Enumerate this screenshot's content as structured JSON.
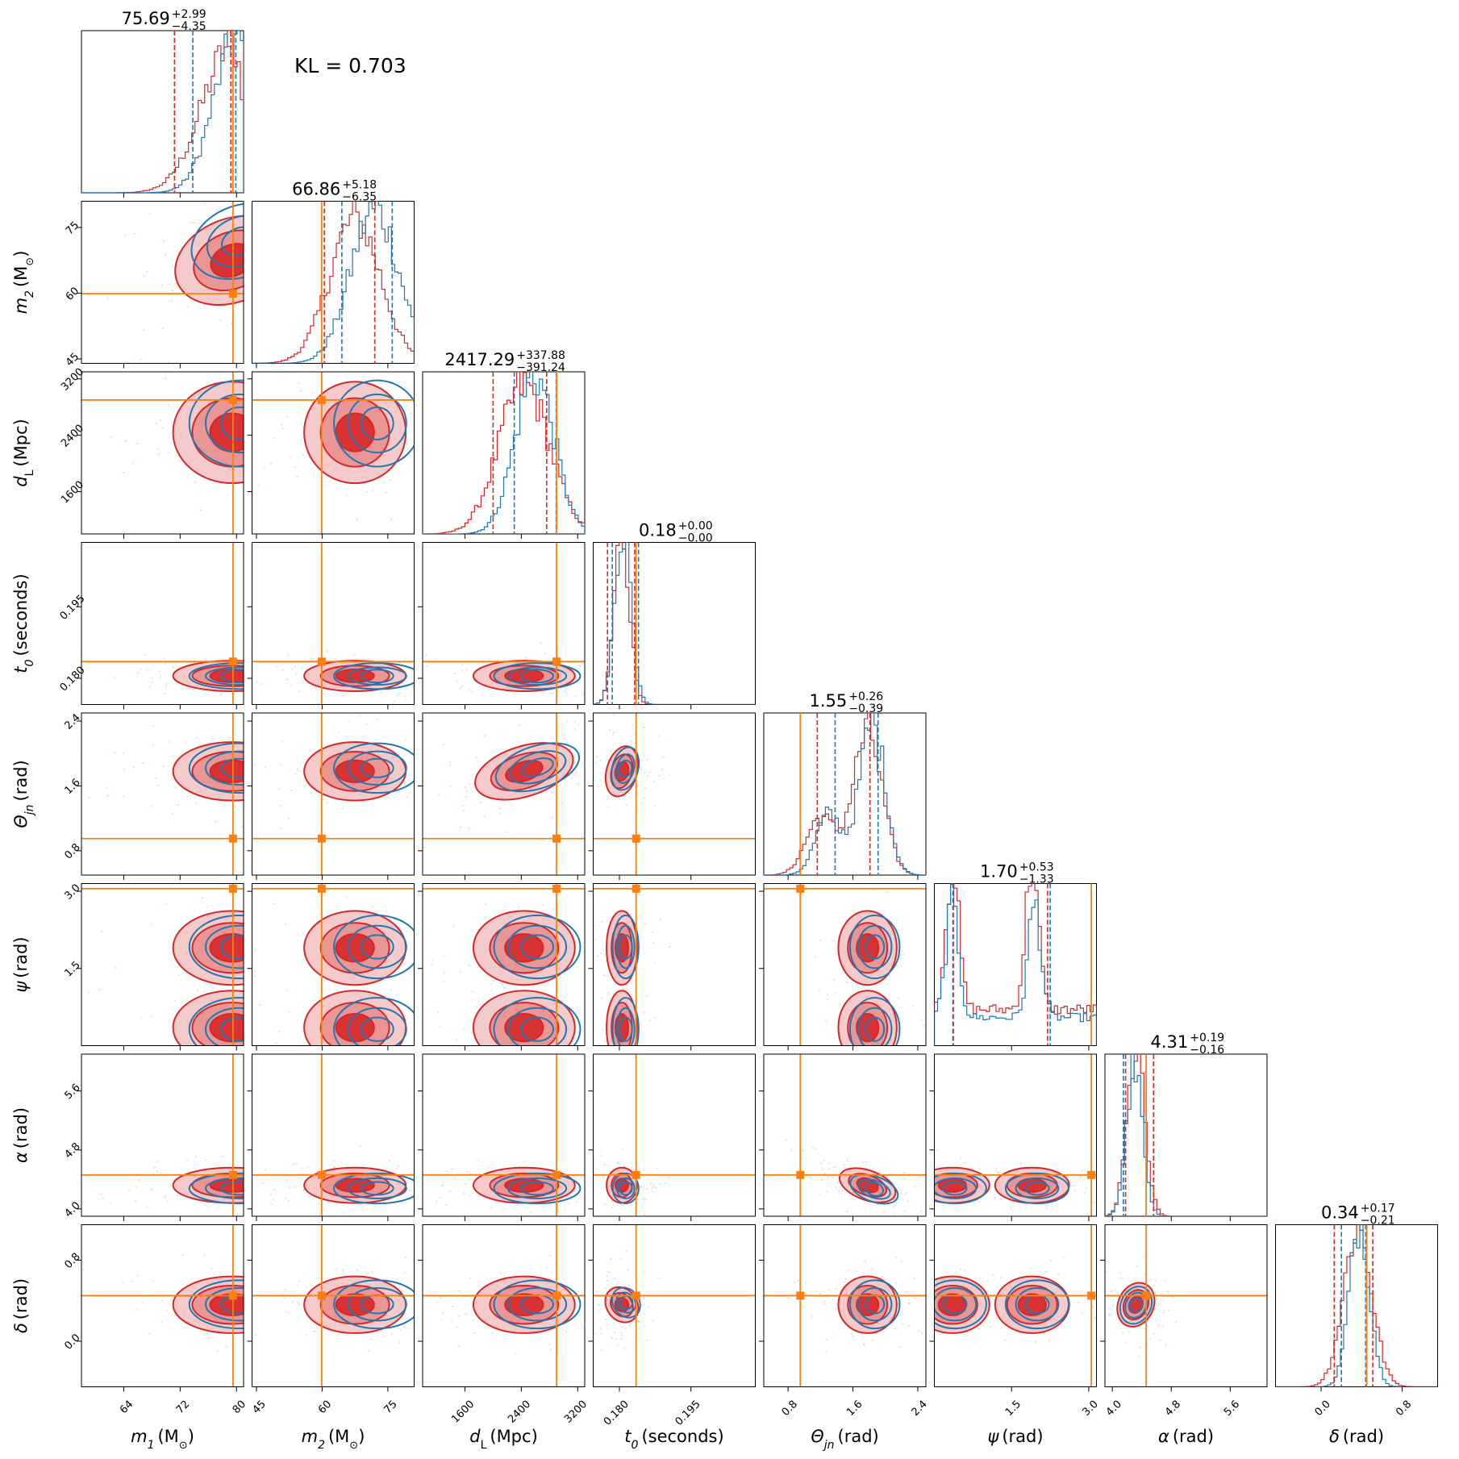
{
  "chart_data": {
    "type": "scatter",
    "subtype": "corner-plot",
    "annotation": "KL = 0.703",
    "colors": {
      "posterior_a": "#d62728",
      "posterior_b": "#1f77b4",
      "truth": "#ff7f0e"
    },
    "series": [
      {
        "color": "#d62728",
        "style": "filled-contours-and-histograms"
      },
      {
        "color": "#1f77b4",
        "style": "line-contours-and-histograms"
      }
    ],
    "parameters": [
      {
        "key": "m1",
        "sym": "m",
        "sub": "1",
        "unit": "(M",
        "unit_sub": "⊙",
        "unit_end": ")",
        "range": [
          58,
          81
        ],
        "ticks": [
          64,
          72,
          80
        ],
        "tick_labels": [
          "64",
          "72",
          "80"
        ],
        "truth": 79.5,
        "title_main": "75.69",
        "title_plus": "+2.99",
        "title_minus": "−4.35",
        "quantiles_red": [
          71.2,
          79.2
        ],
        "quantiles_blue": [
          73.8,
          79.9
        ],
        "hist_red": {
          "peak": 79.4,
          "width": 4.2,
          "skew": "left"
        },
        "hist_blue": {
          "peak": 80.1,
          "width": 3.3,
          "skew": "left"
        }
      },
      {
        "key": "m2",
        "sym": "m",
        "sub": "2",
        "unit": "(M",
        "unit_sub": "⊙",
        "unit_end": ")",
        "range": [
          44,
          81
        ],
        "ticks": [
          45,
          60,
          75
        ],
        "tick_labels": [
          "45",
          "60",
          "75"
        ],
        "truth": 59.9,
        "title_main": "66.86",
        "title_plus": "+5.18",
        "title_minus": "−6.35",
        "quantiles_red": [
          60.5,
          72.0
        ],
        "quantiles_blue": [
          64.5,
          76.0
        ],
        "hist_red": {
          "peak": 67.5,
          "width": 5.8
        },
        "hist_blue": {
          "peak": 72.0,
          "width": 5.5
        }
      },
      {
        "key": "dl",
        "sym": "d",
        "sub": "L",
        "unit": "(Mpc)",
        "range": [
          1000,
          3300
        ],
        "ticks": [
          1600,
          2400,
          3200
        ],
        "tick_labels": [
          "1600",
          "2400",
          "3200"
        ],
        "truth": 2900,
        "title_main": "2417.29",
        "title_plus": "+337.88",
        "title_minus": "−391.24",
        "quantiles_red": [
          2000,
          2760
        ],
        "quantiles_blue": [
          2300,
          2895
        ],
        "hist_red": {
          "peak": 2440,
          "width": 360
        },
        "hist_blue": {
          "peak": 2590,
          "width": 280
        }
      },
      {
        "key": "t0",
        "sym": "t",
        "sub": "0",
        "unit": "(seconds)",
        "range": [
          0.1745,
          0.2085
        ],
        "ticks": [
          0.18,
          0.195
        ],
        "tick_labels": [
          "0.180",
          "0.195"
        ],
        "truth": 0.1835,
        "title_main": "0.18",
        "title_plus": "+0.00",
        "title_minus": "−0.00",
        "quantiles_red": [
          0.1775,
          0.1832
        ],
        "quantiles_blue": [
          0.1785,
          0.184
        ],
        "hist_red": {
          "peak": 0.1805,
          "width": 0.0016
        },
        "hist_blue": {
          "peak": 0.1808,
          "width": 0.0017
        }
      },
      {
        "key": "thetajn",
        "sym": "Θ",
        "sub": "jn",
        "unit": "(rad)",
        "range": [
          0.5,
          2.5
        ],
        "ticks": [
          0.8,
          1.6,
          2.4
        ],
        "tick_labels": [
          "0.8",
          "1.6",
          "2.4"
        ],
        "truth": 0.95,
        "title_main": "1.55",
        "title_plus": "+0.26",
        "title_minus": "−0.39",
        "quantiles_red": [
          1.16,
          1.81
        ],
        "quantiles_blue": [
          1.38,
          1.91
        ],
        "hist_red": {
          "peak": 1.78,
          "width": 0.18,
          "bimodal": 1.2
        },
        "hist_blue": {
          "peak": 1.84,
          "width": 0.16,
          "bimodal": 1.3
        }
      },
      {
        "key": "psi",
        "sym": "ψ",
        "sub": "",
        "unit": "(rad)",
        "range": [
          0.0,
          3.15
        ],
        "ticks": [
          1.5,
          3.0
        ],
        "tick_labels": [
          "1.5",
          "3.0"
        ],
        "truth": 3.05,
        "title_main": "1.70",
        "title_plus": "+0.53",
        "title_minus": "−1.33",
        "quantiles_red": [
          0.37,
          2.2
        ],
        "quantiles_blue": [
          0.36,
          2.25
        ],
        "hist_red": {
          "peaks": [
            0.35,
            1.9
          ],
          "width": 0.12
        },
        "hist_blue": {
          "peaks": [
            0.35,
            1.95
          ],
          "width": 0.12
        }
      },
      {
        "key": "alpha",
        "sym": "α",
        "sub": "",
        "unit": "(rad)",
        "range": [
          3.9,
          6.1
        ],
        "ticks": [
          4.0,
          4.8,
          5.6
        ],
        "tick_labels": [
          "4.0",
          "4.8",
          "5.6"
        ],
        "truth": 4.46,
        "title_main": "4.31",
        "title_plus": "+0.19",
        "title_minus": "−0.16",
        "quantiles_red": [
          4.18,
          4.56
        ],
        "quantiles_blue": [
          4.15,
          4.46
        ],
        "hist_red": {
          "peak": 4.32,
          "width": 0.12
        },
        "hist_blue": {
          "peak": 4.3,
          "width": 0.11
        }
      },
      {
        "key": "delta",
        "sym": "δ",
        "sub": "",
        "unit": "(rad)",
        "range": [
          -0.45,
          1.15
        ],
        "ticks": [
          0.0,
          0.8
        ],
        "tick_labels": [
          "0.0",
          "0.8"
        ],
        "truth": 0.45,
        "title_main": "0.34",
        "title_plus": "+0.17",
        "title_minus": "−0.21",
        "quantiles_red": [
          0.13,
          0.51
        ],
        "quantiles_blue": [
          0.2,
          0.44
        ],
        "hist_red": {
          "peak": 0.36,
          "width": 0.14
        },
        "hist_blue": {
          "peak": 0.38,
          "width": 0.1
        }
      }
    ],
    "correlations": {
      "m2|m1": 0.45,
      "t0|m1": 0.0,
      "t0|dl": 0.0,
      "thetajn|dl": 0.35,
      "thetajn|t0": -0.3,
      "delta|t0": 0.85,
      "delta|alpha": -0.5,
      "alpha|thetajn": -0.4
    }
  }
}
